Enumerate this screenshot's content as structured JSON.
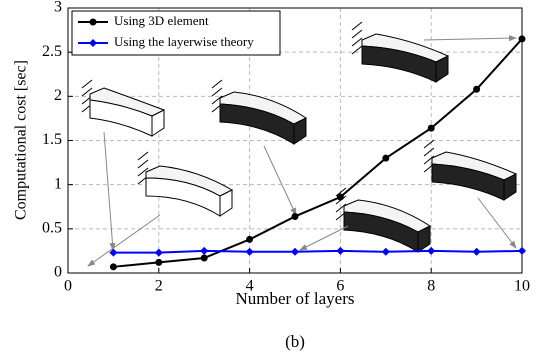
{
  "chart_data": {
    "type": "line",
    "xlabel": "Number of layers",
    "ylabel": "Computational cost [sec]",
    "x": [
      1,
      2,
      3,
      4,
      5,
      6,
      7,
      8,
      9,
      10
    ],
    "series": [
      {
        "name": "Using 3D element",
        "color": "#000000",
        "marker": "circle",
        "values": [
          0.07,
          0.12,
          0.17,
          0.38,
          0.64,
          0.86,
          1.3,
          1.64,
          2.08,
          2.65
        ]
      },
      {
        "name": "Using the layerwise theory",
        "color": "#0000ff",
        "marker": "diamond",
        "values": [
          0.23,
          0.23,
          0.25,
          0.24,
          0.24,
          0.25,
          0.24,
          0.25,
          0.24,
          0.25
        ]
      }
    ],
    "xlim": [
      0,
      10
    ],
    "xticks": [
      0,
      2,
      4,
      6,
      8,
      10
    ],
    "ylim": [
      0,
      3
    ],
    "yticks": [
      0,
      0.5,
      1,
      1.5,
      2,
      2.5,
      3
    ],
    "grid": true
  },
  "caption": "(b)"
}
